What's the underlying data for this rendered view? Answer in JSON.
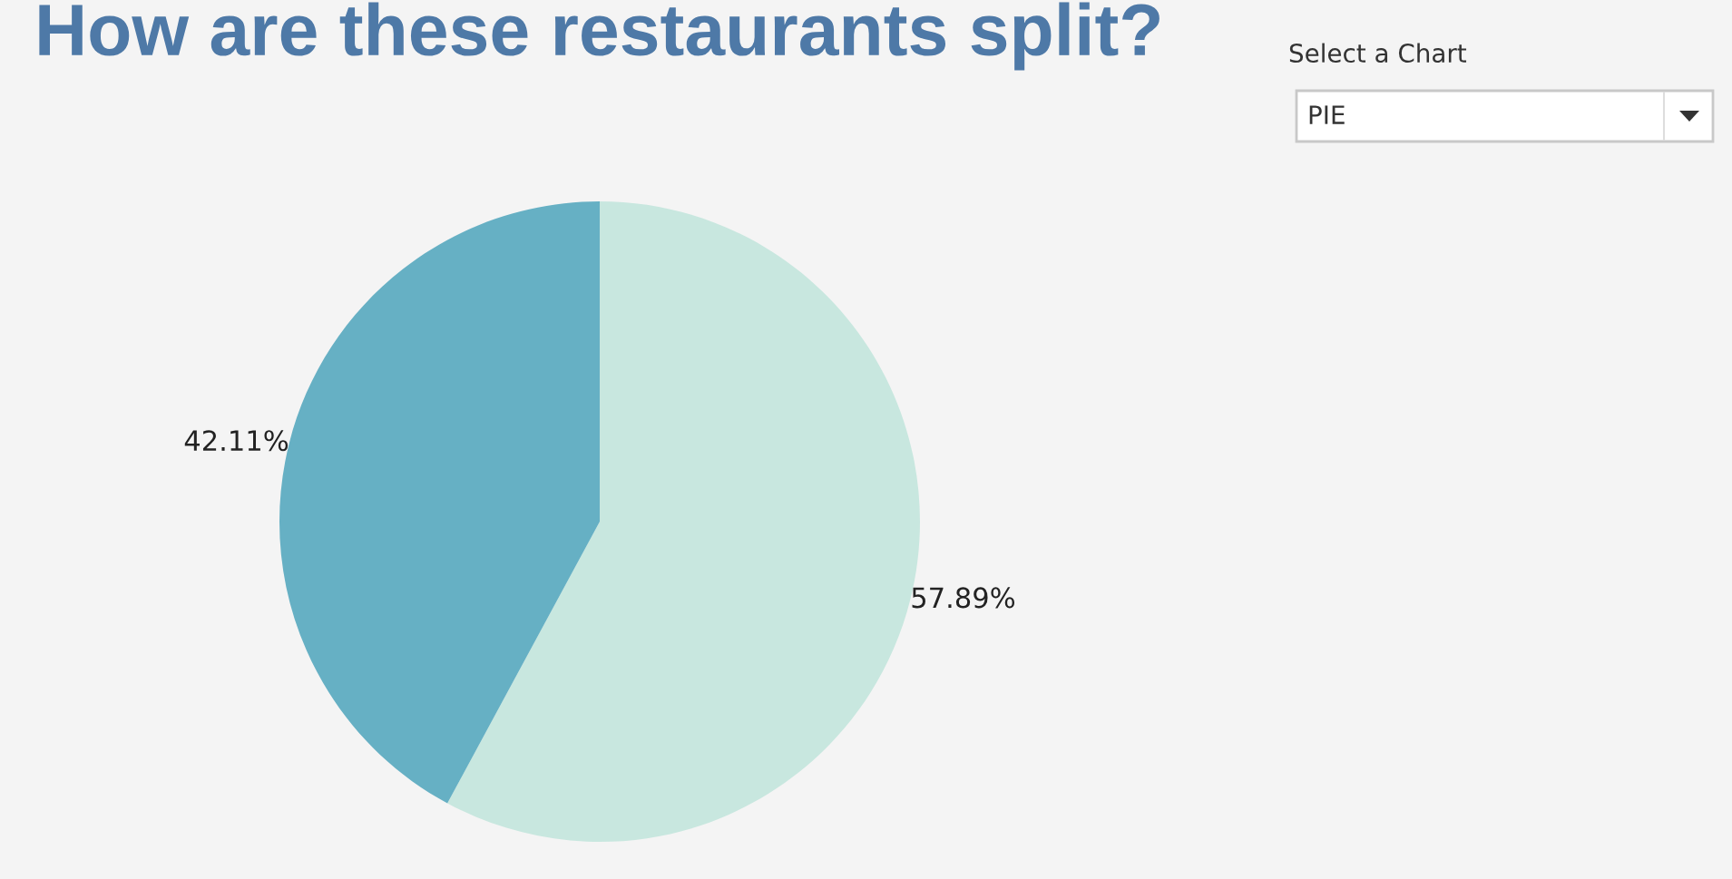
{
  "chart_data": {
    "type": "pie",
    "title": "How are these restaurants split?",
    "categories": [
      null,
      null
    ],
    "values": [
      57.89,
      42.11
    ],
    "colors": [
      "#c8e7df",
      "#66b0c4"
    ],
    "value_labels": [
      "57.89%",
      "42.11%"
    ],
    "annotations": [
      "Select a Chart",
      "PIE"
    ]
  }
}
